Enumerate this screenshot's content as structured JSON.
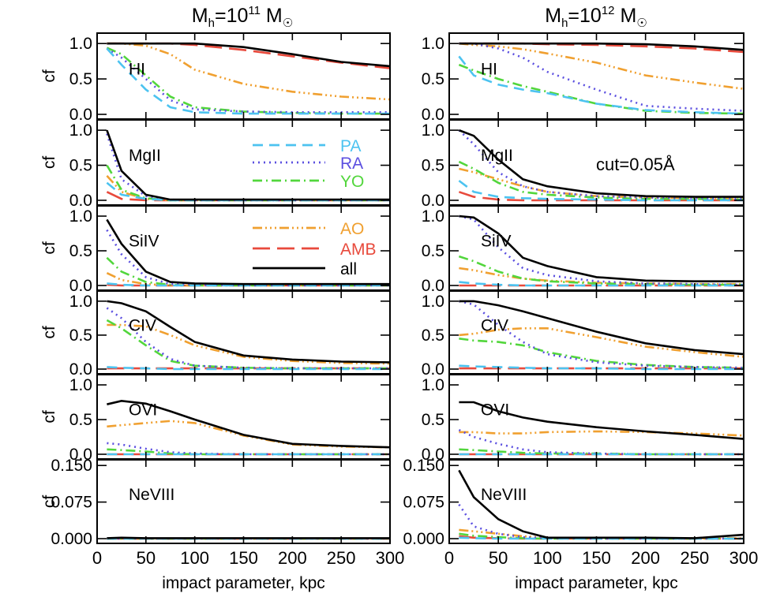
{
  "figure": {
    "columns": [
      {
        "title_base": "M",
        "title_sub": "h",
        "title_eq": "=10",
        "title_sup": "11",
        "title_unit": " M",
        "title_sun": "☉"
      },
      {
        "title_base": "M",
        "title_sub": "h",
        "title_eq": "=10",
        "title_sup": "12",
        "title_unit": " M",
        "title_sun": "☉"
      }
    ],
    "ylabel": "cf",
    "xlabel": "impact parameter, kpc",
    "annotation": "cut=0.05Å"
  },
  "legend": {
    "items": [
      {
        "key": "PA",
        "label": "PA",
        "color": "#4cc3f0",
        "dash": "13,8"
      },
      {
        "key": "RA",
        "label": "RA",
        "color": "#5b4fe0",
        "dash": "2,5"
      },
      {
        "key": "YO",
        "label": "YO",
        "color": "#52d63c",
        "dash": "12,5,2,5"
      },
      {
        "key": "AO",
        "label": "AO",
        "color": "#f0a030",
        "dash": "12,4,2,4,2,4,2,4"
      },
      {
        "key": "AMB",
        "label": "AMB",
        "color": "#e84a3c",
        "dash": "22,9"
      },
      {
        "key": "all",
        "label": "all",
        "color": "#000000",
        "dash": ""
      }
    ]
  },
  "chart_data": {
    "type": "line",
    "x": [
      10,
      25,
      50,
      75,
      100,
      150,
      200,
      250,
      300
    ],
    "xlim": [
      0,
      300
    ],
    "xticks": [
      0,
      50,
      100,
      150,
      200,
      250,
      300
    ],
    "xtick_labels": [
      "0",
      "50",
      "100",
      "150",
      "200",
      "250",
      "300"
    ],
    "xlabel": "impact parameter, kpc",
    "ylabel": "cf",
    "panels": [
      {
        "ion": "HI",
        "ylim": [
          0,
          1.08
        ],
        "yticks": [
          0,
          0.5,
          1.0
        ],
        "ytick_labels": [
          "0.0",
          "0.5",
          "1.0"
        ],
        "left": {
          "PA": [
            0.93,
            0.7,
            0.35,
            0.1,
            0.03,
            0.01,
            0.01,
            0.01,
            0.01
          ],
          "RA": [
            0.93,
            0.8,
            0.5,
            0.2,
            0.07,
            0.04,
            0.03,
            0.03,
            0.03
          ],
          "YO": [
            0.94,
            0.85,
            0.55,
            0.25,
            0.1,
            0.04,
            0.02,
            0.01,
            0.01
          ],
          "AO": [
            1.0,
            1.0,
            0.97,
            0.85,
            0.63,
            0.43,
            0.32,
            0.25,
            0.21
          ],
          "AMB": [
            1.0,
            1.0,
            1.0,
            1.0,
            0.98,
            0.91,
            0.82,
            0.73,
            0.65
          ],
          "all": [
            1.0,
            1.0,
            1.0,
            1.0,
            1.0,
            0.95,
            0.85,
            0.74,
            0.68
          ]
        },
        "right": {
          "PA": [
            0.82,
            0.55,
            0.42,
            0.35,
            0.3,
            0.15,
            0.06,
            0.03,
            0.01
          ],
          "RA": [
            1.0,
            1.0,
            0.93,
            0.8,
            0.6,
            0.35,
            0.12,
            0.08,
            0.05
          ],
          "YO": [
            0.7,
            0.62,
            0.5,
            0.4,
            0.32,
            0.15,
            0.05,
            0.02,
            0.01
          ],
          "AO": [
            1.0,
            0.98,
            0.96,
            0.92,
            0.86,
            0.73,
            0.55,
            0.45,
            0.36
          ],
          "AMB": [
            1.0,
            1.0,
            1.0,
            1.0,
            0.99,
            0.98,
            0.96,
            0.93,
            0.88
          ],
          "all": [
            1.0,
            1.0,
            1.0,
            1.0,
            1.0,
            1.0,
            0.99,
            0.96,
            0.91
          ]
        }
      },
      {
        "ion": "MgII",
        "ylim": [
          0,
          1.08
        ],
        "yticks": [
          0,
          0.5,
          1.0
        ],
        "ytick_labels": [
          "0.0",
          "0.5",
          "1.0"
        ],
        "left": {
          "PA": [
            0.25,
            0.08,
            0.02,
            0.0,
            0.0,
            0.0,
            0.0,
            0.0,
            0.0
          ],
          "RA": [
            0.95,
            0.3,
            0.06,
            0.01,
            0.0,
            0.0,
            0.0,
            0.0,
            0.0
          ],
          "YO": [
            0.5,
            0.15,
            0.03,
            0.0,
            0.0,
            0.0,
            0.0,
            0.0,
            0.0
          ],
          "AO": [
            0.35,
            0.12,
            0.02,
            0.0,
            0.0,
            0.0,
            0.0,
            0.0,
            0.0
          ],
          "AMB": [
            0.12,
            0.02,
            0.0,
            0.0,
            0.0,
            0.0,
            0.0,
            0.0,
            0.0
          ],
          "all": [
            1.0,
            0.42,
            0.08,
            0.01,
            0.01,
            0.01,
            0.01,
            0.01,
            0.01
          ]
        },
        "right": {
          "PA": [
            0.28,
            0.12,
            0.05,
            0.03,
            0.02,
            0.01,
            0.0,
            0.0,
            0.0
          ],
          "RA": [
            1.0,
            0.8,
            0.4,
            0.2,
            0.12,
            0.06,
            0.04,
            0.03,
            0.02
          ],
          "YO": [
            0.55,
            0.45,
            0.25,
            0.12,
            0.08,
            0.04,
            0.02,
            0.02,
            0.01
          ],
          "AO": [
            0.45,
            0.4,
            0.3,
            0.2,
            0.12,
            0.06,
            0.04,
            0.03,
            0.02
          ],
          "AMB": [
            0.12,
            0.05,
            0.01,
            0.0,
            0.0,
            0.0,
            0.0,
            0.0,
            0.0
          ],
          "all": [
            1.0,
            0.92,
            0.58,
            0.3,
            0.2,
            0.1,
            0.06,
            0.05,
            0.05
          ]
        }
      },
      {
        "ion": "SiIV",
        "ylim": [
          0,
          1.08
        ],
        "yticks": [
          0,
          0.5,
          1.0
        ],
        "ytick_labels": [
          "0.0",
          "0.5",
          "1.0"
        ],
        "left": {
          "PA": [
            0.03,
            0.01,
            0.0,
            0.0,
            0.0,
            0.0,
            0.0,
            0.0,
            0.0
          ],
          "RA": [
            0.8,
            0.45,
            0.12,
            0.02,
            0.01,
            0.0,
            0.0,
            0.0,
            0.0
          ],
          "YO": [
            0.4,
            0.2,
            0.05,
            0.01,
            0.0,
            0.0,
            0.0,
            0.0,
            0.0
          ],
          "AO": [
            0.18,
            0.08,
            0.02,
            0.0,
            0.0,
            0.0,
            0.0,
            0.0,
            0.0
          ],
          "AMB": [
            0.01,
            0.0,
            0.0,
            0.0,
            0.0,
            0.0,
            0.0,
            0.0,
            0.0
          ],
          "all": [
            0.95,
            0.6,
            0.2,
            0.05,
            0.03,
            0.02,
            0.02,
            0.02,
            0.02
          ]
        },
        "right": {
          "PA": [
            0.05,
            0.03,
            0.01,
            0.0,
            0.0,
            0.0,
            0.0,
            0.0,
            0.0
          ],
          "RA": [
            1.0,
            0.95,
            0.55,
            0.25,
            0.15,
            0.06,
            0.03,
            0.02,
            0.01
          ],
          "YO": [
            0.42,
            0.35,
            0.2,
            0.1,
            0.06,
            0.03,
            0.02,
            0.01,
            0.01
          ],
          "AO": [
            0.25,
            0.22,
            0.15,
            0.1,
            0.07,
            0.04,
            0.03,
            0.02,
            0.02
          ],
          "AMB": [
            0.0,
            0.0,
            0.0,
            0.0,
            0.0,
            0.0,
            0.0,
            0.0,
            0.0
          ],
          "all": [
            1.0,
            0.98,
            0.75,
            0.4,
            0.28,
            0.12,
            0.07,
            0.06,
            0.06
          ]
        }
      },
      {
        "ion": "CIV",
        "ylim": [
          0,
          1.08
        ],
        "yticks": [
          0,
          0.5,
          1.0
        ],
        "ytick_labels": [
          "0.0",
          "0.5",
          "1.0"
        ],
        "left": {
          "PA": [
            0.03,
            0.02,
            0.01,
            0.0,
            0.0,
            0.0,
            0.0,
            0.0,
            0.0
          ],
          "RA": [
            0.9,
            0.75,
            0.4,
            0.15,
            0.05,
            0.02,
            0.01,
            0.01,
            0.01
          ],
          "YO": [
            0.72,
            0.6,
            0.35,
            0.12,
            0.05,
            0.02,
            0.01,
            0.01,
            0.01
          ],
          "AO": [
            0.65,
            0.65,
            0.63,
            0.5,
            0.35,
            0.18,
            0.12,
            0.09,
            0.08
          ],
          "AMB": [
            0.01,
            0.01,
            0.01,
            0.01,
            0.01,
            0.01,
            0.01,
            0.01,
            0.01
          ],
          "all": [
            1.0,
            0.97,
            0.85,
            0.62,
            0.4,
            0.2,
            0.14,
            0.11,
            0.1
          ]
        },
        "right": {
          "PA": [
            0.05,
            0.04,
            0.03,
            0.02,
            0.01,
            0.01,
            0.0,
            0.0,
            0.0
          ],
          "RA": [
            1.0,
            0.95,
            0.65,
            0.4,
            0.22,
            0.1,
            0.05,
            0.03,
            0.02
          ],
          "YO": [
            0.45,
            0.42,
            0.4,
            0.35,
            0.25,
            0.12,
            0.06,
            0.03,
            0.02
          ],
          "AO": [
            0.5,
            0.52,
            0.58,
            0.6,
            0.6,
            0.47,
            0.33,
            0.25,
            0.18
          ],
          "AMB": [
            0.01,
            0.01,
            0.01,
            0.01,
            0.01,
            0.01,
            0.01,
            0.01,
            0.01
          ],
          "all": [
            1.0,
            1.0,
            0.94,
            0.85,
            0.75,
            0.55,
            0.38,
            0.28,
            0.22
          ]
        }
      },
      {
        "ion": "OVI",
        "ylim": [
          0,
          1.08
        ],
        "yticks": [
          0,
          0.5,
          1.0
        ],
        "ytick_labels": [
          "0.0",
          "0.5",
          "1.0"
        ],
        "left": {
          "PA": [
            0.0,
            0.0,
            0.0,
            0.0,
            0.0,
            0.0,
            0.0,
            0.0,
            0.0
          ],
          "RA": [
            0.16,
            0.14,
            0.08,
            0.03,
            0.01,
            0.0,
            0.0,
            0.0,
            0.0
          ],
          "YO": [
            0.07,
            0.06,
            0.04,
            0.01,
            0.0,
            0.0,
            0.0,
            0.0,
            0.0
          ],
          "AO": [
            0.4,
            0.42,
            0.45,
            0.48,
            0.45,
            0.27,
            0.14,
            0.11,
            0.1
          ],
          "AMB": [
            0.0,
            0.0,
            0.0,
            0.0,
            0.0,
            0.0,
            0.0,
            0.0,
            0.0
          ],
          "all": [
            0.72,
            0.77,
            0.73,
            0.62,
            0.5,
            0.28,
            0.15,
            0.12,
            0.1
          ]
        },
        "right": {
          "PA": [
            0.0,
            0.0,
            0.0,
            0.0,
            0.0,
            0.0,
            0.0,
            0.0,
            0.0
          ],
          "RA": [
            0.35,
            0.25,
            0.15,
            0.07,
            0.03,
            0.01,
            0.0,
            0.0,
            0.0
          ],
          "YO": [
            0.07,
            0.06,
            0.04,
            0.02,
            0.01,
            0.01,
            0.0,
            0.0,
            0.0
          ],
          "AO": [
            0.32,
            0.32,
            0.3,
            0.3,
            0.32,
            0.33,
            0.32,
            0.3,
            0.27
          ],
          "AMB": [
            0.0,
            0.0,
            0.0,
            0.0,
            0.0,
            0.0,
            0.0,
            0.0,
            0.0
          ],
          "all": [
            0.75,
            0.75,
            0.62,
            0.53,
            0.47,
            0.39,
            0.33,
            0.28,
            0.22
          ]
        }
      },
      {
        "ion": "NeVIII",
        "ylim": [
          0,
          0.152
        ],
        "yticks": [
          0,
          0.075,
          0.15
        ],
        "ytick_labels": [
          "0.000",
          "0.075",
          "0.150"
        ],
        "left": {
          "PA": [
            0.0,
            0.0,
            0.0,
            0.0,
            0.0,
            0.0,
            0.0,
            0.0,
            0.0
          ],
          "RA": [
            0.0,
            0.0,
            0.0,
            0.0,
            0.0,
            0.0,
            0.0,
            0.0,
            0.0
          ],
          "YO": [
            0.0,
            0.0,
            0.0,
            0.0,
            0.0,
            0.0,
            0.0,
            0.0,
            0.0
          ],
          "AO": [
            0.0,
            0.0,
            0.0,
            0.0,
            0.0,
            0.0,
            0.0,
            0.0,
            0.0
          ],
          "AMB": [
            0.0,
            0.0,
            0.0,
            0.0,
            0.0,
            0.0,
            0.0,
            0.0,
            0.0
          ],
          "all": [
            0.001,
            0.002,
            0.001,
            0.001,
            0.001,
            0.001,
            0.001,
            0.001,
            0.001
          ]
        },
        "right": {
          "PA": [
            0.002,
            0.001,
            0.0,
            0.0,
            0.0,
            0.0,
            0.0,
            0.0,
            0.0
          ],
          "RA": [
            0.07,
            0.025,
            0.01,
            0.003,
            0.001,
            0.0,
            0.0,
            0.0,
            0.0
          ],
          "YO": [
            0.01,
            0.006,
            0.003,
            0.001,
            0.0,
            0.0,
            0.0,
            0.0,
            0.0
          ],
          "AO": [
            0.018,
            0.015,
            0.01,
            0.005,
            0.002,
            0.001,
            0.001,
            0.001,
            0.001
          ],
          "AMB": [
            0.005,
            0.002,
            0.001,
            0.0,
            0.0,
            0.0,
            0.0,
            0.0,
            0.0
          ],
          "all": [
            0.14,
            0.085,
            0.04,
            0.015,
            0.002,
            0.002,
            0.002,
            0.001,
            0.008
          ]
        }
      }
    ]
  }
}
